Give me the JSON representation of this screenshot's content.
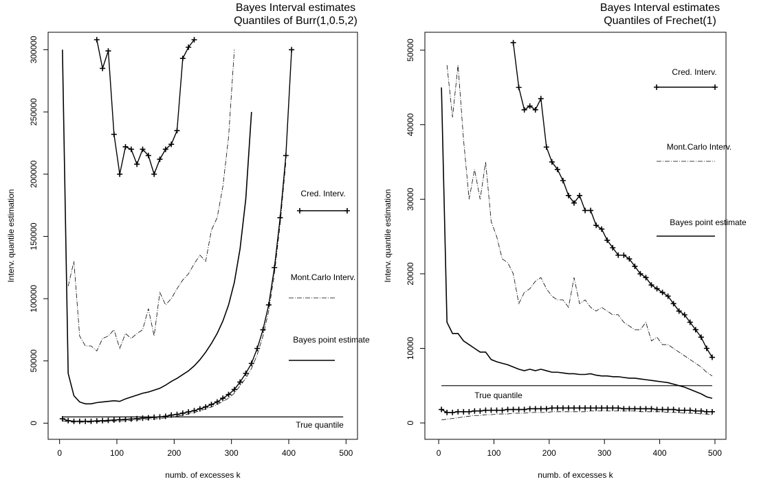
{
  "chart_data": [
    {
      "type": "line",
      "title": [
        "Bayes Interval estimates",
        "Quantiles of Burr(1,0.5,2)"
      ],
      "x_label": "numb. of excesses k",
      "y_label": "Interv. quantile estimation",
      "xlim": [
        -20,
        520
      ],
      "ylim": [
        -13000,
        314000
      ],
      "xticks": [
        0,
        100,
        200,
        300,
        400,
        500
      ],
      "yticks": [
        0,
        50000,
        100000,
        150000,
        200000,
        250000,
        300000
      ],
      "x": [
        5,
        15,
        25,
        35,
        45,
        55,
        65,
        75,
        85,
        95,
        105,
        115,
        125,
        135,
        145,
        155,
        165,
        175,
        185,
        195,
        205,
        215,
        225,
        235,
        245,
        255,
        265,
        275,
        285,
        295,
        305,
        315,
        325,
        335,
        345,
        355,
        365,
        375,
        385,
        395,
        405,
        415,
        425,
        435,
        445,
        455,
        465,
        475,
        485,
        495
      ],
      "series": [
        {
          "name": "Cred. Interv.",
          "style": "cross",
          "color": "#000000",
          "upper": [
            null,
            null,
            null,
            null,
            null,
            null,
            308000,
            285000,
            299000,
            232000,
            200000,
            222000,
            220000,
            208000,
            220000,
            215000,
            200000,
            212000,
            220000,
            224000,
            235000,
            293000,
            302000,
            308000,
            null,
            null,
            null,
            null,
            null,
            null,
            null,
            null,
            null,
            null,
            null,
            null,
            null,
            null,
            null,
            null,
            null,
            null,
            null,
            null,
            null,
            null,
            null,
            null,
            null,
            null
          ],
          "lower": [
            3500,
            2000,
            1500,
            1500,
            1500,
            1500,
            1800,
            2000,
            2200,
            2500,
            2800,
            3000,
            3300,
            3600,
            4000,
            4300,
            4700,
            5000,
            5500,
            6500,
            7000,
            8000,
            9000,
            10000,
            11500,
            13000,
            15000,
            17000,
            20000,
            23000,
            27000,
            33000,
            40000,
            48000,
            60000,
            75000,
            95000,
            125000,
            165000,
            215000,
            300000,
            null,
            null,
            null,
            null,
            null,
            null,
            null,
            null,
            null
          ]
        },
        {
          "name": "Mont.Carlo Interv.",
          "style": "dashdot",
          "color": "#000000",
          "upper": [
            null,
            110000,
            130000,
            70000,
            62000,
            62000,
            58000,
            68000,
            70000,
            75000,
            60000,
            72000,
            68000,
            72000,
            75000,
            92000,
            70000,
            105000,
            95000,
            100000,
            108000,
            115000,
            120000,
            128000,
            135000,
            130000,
            155000,
            165000,
            190000,
            230000,
            300000,
            null,
            null,
            null,
            null,
            null,
            null,
            null,
            null,
            null,
            null,
            null,
            null,
            null,
            null,
            null,
            null,
            null,
            null,
            null
          ],
          "lower": [
            2000,
            1000,
            800,
            800,
            800,
            900,
            1000,
            1200,
            1400,
            1600,
            1800,
            2000,
            2200,
            2500,
            2800,
            3100,
            3400,
            3800,
            4200,
            5000,
            5500,
            6500,
            7500,
            8500,
            10000,
            11500,
            13000,
            15000,
            17500,
            20000,
            24000,
            30000,
            36000,
            44000,
            55000,
            70000,
            90000,
            120000,
            160000,
            210000,
            null,
            null,
            null,
            null,
            null,
            null,
            null,
            null,
            null,
            null
          ]
        },
        {
          "name": "Bayes point estimate",
          "style": "solid",
          "color": "#000000",
          "values": [
            300000,
            40000,
            22000,
            17000,
            15500,
            15500,
            16500,
            17000,
            17500,
            18000,
            17500,
            19500,
            21000,
            22500,
            24000,
            25000,
            26500,
            28000,
            30500,
            33500,
            36000,
            39000,
            42000,
            46000,
            51000,
            57000,
            64000,
            72000,
            82000,
            95000,
            113000,
            140000,
            180000,
            250000,
            null,
            null,
            null,
            null,
            null,
            null,
            null,
            null,
            null,
            null,
            null,
            null,
            null,
            null,
            null,
            null
          ]
        },
        {
          "name": "True quantile",
          "style": "flat",
          "color": "#000000",
          "values": [
            5000,
            5000,
            5000,
            5000,
            5000,
            5000,
            5000,
            5000,
            5000,
            5000,
            5000,
            5000,
            5000,
            5000,
            5000,
            5000,
            5000,
            5000,
            5000,
            5000,
            5000,
            5000,
            5000,
            5000,
            5000,
            5000,
            5000,
            5000,
            5000,
            5000,
            5000,
            5000,
            5000,
            5000,
            5000,
            5000,
            5000,
            5000,
            5000,
            5000,
            5000,
            5000,
            5000,
            5000,
            5000,
            5000,
            5000,
            5000,
            5000,
            5000
          ]
        }
      ]
    },
    {
      "type": "line",
      "title": [
        "Bayes Interval estimates",
        "Quantiles of Frechet(1)"
      ],
      "x_label": "numb. of excesses k",
      "y_label": "Interv. quantile estimation",
      "xlim": [
        -25,
        520
      ],
      "ylim": [
        -2200,
        52400
      ],
      "xticks": [
        0,
        100,
        200,
        300,
        400,
        500
      ],
      "yticks": [
        0,
        10000,
        20000,
        30000,
        40000,
        50000
      ],
      "x": [
        5,
        15,
        25,
        35,
        45,
        55,
        65,
        75,
        85,
        95,
        105,
        115,
        125,
        135,
        145,
        155,
        165,
        175,
        185,
        195,
        205,
        215,
        225,
        235,
        245,
        255,
        265,
        275,
        285,
        295,
        305,
        315,
        325,
        335,
        345,
        355,
        365,
        375,
        385,
        395,
        405,
        415,
        425,
        435,
        445,
        455,
        465,
        475,
        485,
        495
      ],
      "series": [
        {
          "name": "Cred. Interv.",
          "style": "cross",
          "color": "#000000",
          "upper": [
            null,
            null,
            null,
            null,
            null,
            null,
            null,
            null,
            null,
            null,
            null,
            null,
            null,
            51000,
            45000,
            42000,
            42500,
            42000,
            43500,
            37000,
            35000,
            34000,
            32500,
            30500,
            29500,
            30500,
            28500,
            28500,
            26500,
            26000,
            24500,
            23500,
            22500,
            22500,
            22000,
            21000,
            20000,
            19500,
            18500,
            18000,
            17500,
            17000,
            16000,
            15000,
            14500,
            13500,
            12500,
            11500,
            10000,
            8800
          ],
          "lower": [
            1800,
            1400,
            1400,
            1500,
            1500,
            1500,
            1600,
            1600,
            1700,
            1700,
            1700,
            1700,
            1800,
            1800,
            1800,
            1800,
            1900,
            1900,
            1900,
            1900,
            2000,
            2000,
            2000,
            2000,
            2000,
            2000,
            2000,
            2000,
            2000,
            2000,
            2000,
            2000,
            2000,
            1900,
            1900,
            1900,
            1900,
            1900,
            1900,
            1800,
            1800,
            1800,
            1800,
            1700,
            1700,
            1700,
            1600,
            1600,
            1500,
            1500
          ]
        },
        {
          "name": "Mont.Carlo Interv.",
          "style": "dashdot",
          "color": "#000000",
          "upper": [
            null,
            48000,
            41000,
            48000,
            38000,
            30000,
            34000,
            30000,
            35000,
            27000,
            25000,
            22000,
            21500,
            20000,
            16000,
            17500,
            18000,
            19000,
            19500,
            18000,
            17000,
            16500,
            16500,
            15500,
            19500,
            16000,
            16500,
            15500,
            15000,
            15500,
            15000,
            14500,
            14500,
            13500,
            13000,
            12500,
            12500,
            13500,
            11000,
            11500,
            10500,
            10500,
            10000,
            9500,
            9000,
            8500,
            8000,
            7500,
            6800,
            6300
          ],
          "lower": [
            400,
            500,
            600,
            700,
            800,
            900,
            1000,
            1000,
            1100,
            1100,
            1200,
            1200,
            1200,
            1300,
            1300,
            1300,
            1400,
            1400,
            1400,
            1400,
            1500,
            1500,
            1500,
            1500,
            1500,
            1500,
            1500,
            1600,
            1600,
            1600,
            1600,
            1600,
            1600,
            1600,
            1600,
            1600,
            1500,
            1500,
            1500,
            1500,
            1500,
            1400,
            1400,
            1400,
            1300,
            1300,
            1300,
            1200,
            1200,
            1100
          ]
        },
        {
          "name": "Bayes point estimate",
          "style": "solid",
          "color": "#000000",
          "values": [
            45000,
            13500,
            12000,
            12000,
            11000,
            10500,
            10000,
            9500,
            9500,
            8500,
            8200,
            8000,
            7800,
            7500,
            7200,
            7000,
            7200,
            7000,
            7200,
            7000,
            6800,
            6800,
            6700,
            6600,
            6600,
            6500,
            6500,
            6600,
            6400,
            6300,
            6300,
            6200,
            6200,
            6100,
            6000,
            6000,
            5900,
            5800,
            5700,
            5600,
            5500,
            5400,
            5200,
            5000,
            4800,
            4500,
            4200,
            3900,
            3500,
            3300
          ]
        },
        {
          "name": "True quantile",
          "style": "flat",
          "color": "#000000",
          "values": [
            5000,
            5000,
            5000,
            5000,
            5000,
            5000,
            5000,
            5000,
            5000,
            5000,
            5000,
            5000,
            5000,
            5000,
            5000,
            5000,
            5000,
            5000,
            5000,
            5000,
            5000,
            5000,
            5000,
            5000,
            5000,
            5000,
            5000,
            5000,
            5000,
            5000,
            5000,
            5000,
            5000,
            5000,
            5000,
            5000,
            5000,
            5000,
            5000,
            5000,
            5000,
            5000,
            5000,
            5000,
            5000,
            5000,
            5000,
            5000,
            5000,
            5000
          ]
        }
      ]
    }
  ]
}
